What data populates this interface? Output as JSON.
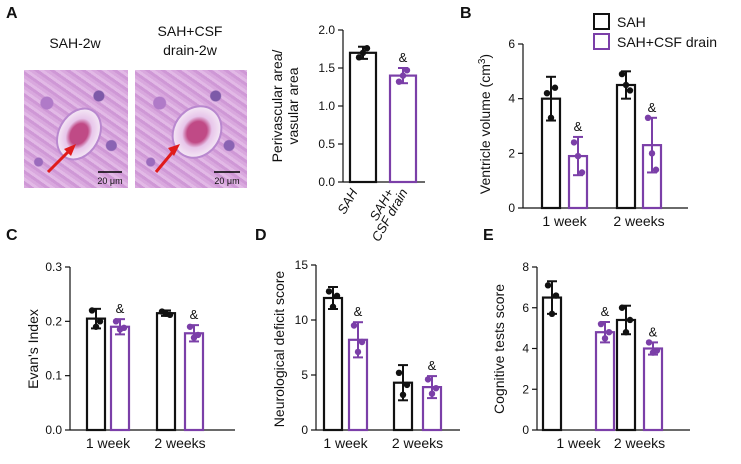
{
  "panels": {
    "A": {
      "letter": "A",
      "image_labels": [
        "SAH-2w",
        "SAH+CSF",
        "drain-2w"
      ],
      "scale_bar": "20 μm",
      "ylabel": [
        "Perivascular area/",
        "vasular area"
      ],
      "categories": [
        "SAH",
        "SAH+",
        "CSF drain"
      ],
      "marker": "&"
    },
    "B": {
      "letter": "B",
      "ylabel": "Ventricle volume (cm",
      "ylabel_sup": "3",
      "ylabel_end": ")",
      "categories": [
        "1 week",
        "2 weeks"
      ],
      "marker": "&"
    },
    "C": {
      "letter": "C",
      "ylabel": "Evan's Index",
      "categories": [
        "1 week",
        "2 weeks"
      ],
      "marker": "&"
    },
    "D": {
      "letter": "D",
      "ylabel": "Neurological deficit score",
      "categories": [
        "1 week",
        "2 weeks"
      ],
      "marker": "&"
    },
    "E": {
      "letter": "E",
      "ylabel": "Cognitive tests score",
      "categories": [
        "1 week",
        "2 weeks"
      ],
      "marker": "&"
    }
  },
  "legend": {
    "items": [
      "SAH",
      "SAH+CSF drain"
    ]
  },
  "colors": {
    "sah": "#111111",
    "drain": "#7b3fa8",
    "dots": "#333333"
  },
  "chart_data": [
    {
      "panel": "A",
      "type": "bar",
      "categories": [
        "SAH",
        "SAH+CSF drain"
      ],
      "series": [
        {
          "values": [
            1.7,
            1.4
          ],
          "errors": [
            0.08,
            0.1
          ],
          "points": [
            [
              1.64,
              1.7,
              1.76
            ],
            [
              1.32,
              1.4,
              1.47
            ]
          ]
        }
      ],
      "ylim": [
        0,
        2.0
      ],
      "yticks": [
        0.0,
        0.5,
        1.0,
        1.5,
        2.0
      ],
      "tick_format": "1"
    },
    {
      "panel": "B",
      "type": "bar",
      "categories": [
        "1 week",
        "2 weeks"
      ],
      "series": [
        {
          "name": "SAH",
          "values": [
            4.0,
            4.5
          ],
          "errors": [
            0.8,
            0.5
          ],
          "points": [
            [
              4.2,
              3.3,
              4.4
            ],
            [
              4.9,
              4.5,
              4.3
            ]
          ]
        },
        {
          "name": "SAH+CSF drain",
          "values": [
            1.9,
            2.3
          ],
          "errors": [
            0.7,
            1.0
          ],
          "points": [
            [
              2.4,
              1.9,
              1.3
            ],
            [
              3.3,
              2.0,
              1.4
            ]
          ]
        }
      ],
      "ylim": [
        0,
        6
      ],
      "yticks": [
        0,
        2,
        4,
        6
      ],
      "tick_format": "0"
    },
    {
      "panel": "C",
      "type": "bar",
      "categories": [
        "1 week",
        "2 weeks"
      ],
      "series": [
        {
          "name": "SAH",
          "values": [
            0.205,
            0.215
          ],
          "errors": [
            0.018,
            0.005
          ],
          "points": [
            [
              0.22,
              0.19,
              0.2
            ],
            [
              0.218,
              0.214,
              0.212
            ]
          ]
        },
        {
          "name": "SAH+CSF drain",
          "values": [
            0.19,
            0.178
          ],
          "errors": [
            0.014,
            0.015
          ],
          "points": [
            [
              0.2,
              0.185,
              0.188
            ],
            [
              0.19,
              0.17,
              0.175
            ]
          ]
        }
      ],
      "ylim": [
        0,
        0.3
      ],
      "yticks": [
        0.0,
        0.1,
        0.2,
        0.3
      ],
      "tick_format": "1"
    },
    {
      "panel": "D",
      "type": "bar",
      "categories": [
        "1 week",
        "2 weeks"
      ],
      "series": [
        {
          "name": "SAH",
          "values": [
            12.0,
            4.3
          ],
          "errors": [
            1.0,
            1.6
          ],
          "points": [
            [
              12.6,
              11.2,
              12.2
            ],
            [
              5.2,
              3.2,
              4.1
            ]
          ]
        },
        {
          "name": "SAH+CSF drain",
          "values": [
            8.2,
            3.9
          ],
          "errors": [
            1.6,
            1.0
          ],
          "points": [
            [
              9.5,
              7.1,
              8.0
            ],
            [
              4.6,
              3.3,
              3.8
            ]
          ]
        }
      ],
      "ylim": [
        0,
        15
      ],
      "yticks": [
        0,
        5,
        10,
        15
      ],
      "tick_format": "0"
    },
    {
      "panel": "E",
      "type": "bar",
      "categories": [
        "1 week",
        "2 weeks"
      ],
      "series": [
        {
          "name": "SAH",
          "values": [
            6.5,
            5.4
          ],
          "errors": [
            0.8,
            0.7
          ],
          "points": [
            [
              7.1,
              5.7,
              6.6
            ],
            [
              6.0,
              4.8,
              5.4
            ]
          ]
        },
        {
          "name": "SAH+CSF drain",
          "values": [
            4.8,
            4.0
          ],
          "errors": [
            0.5,
            0.3
          ],
          "points": [
            [
              5.2,
              4.5,
              4.8
            ],
            [
              4.3,
              3.8,
              3.9
            ]
          ]
        }
      ],
      "ylim": [
        0,
        8
      ],
      "yticks": [
        0,
        2,
        4,
        6,
        8
      ],
      "tick_format": "0"
    }
  ]
}
